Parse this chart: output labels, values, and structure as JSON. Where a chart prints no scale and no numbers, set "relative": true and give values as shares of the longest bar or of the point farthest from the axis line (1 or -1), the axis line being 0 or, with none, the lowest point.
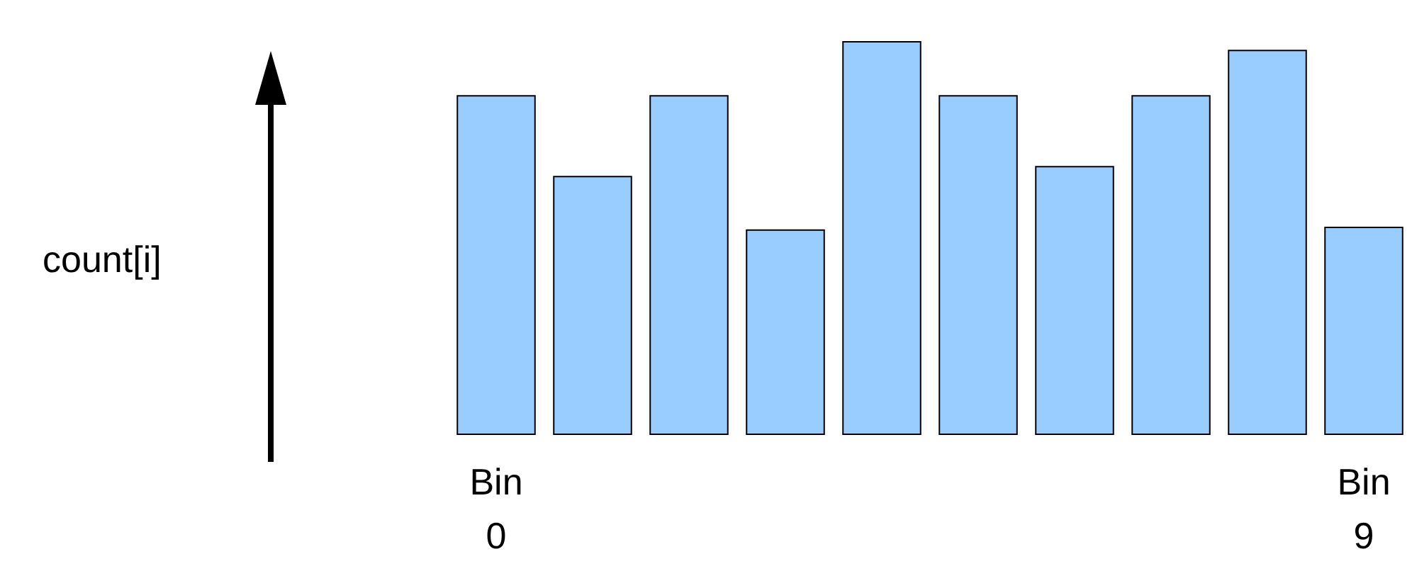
{
  "chart_data": {
    "type": "bar",
    "relative": true,
    "annotations": [
      "count[i]"
    ],
    "categories": [
      "Bin\n0",
      null,
      null,
      null,
      null,
      null,
      null,
      null,
      null,
      "Bin\n9"
    ],
    "values": [
      0.863,
      0.658,
      0.863,
      0.522,
      1,
      0.863,
      0.683,
      0.863,
      0.978,
      0.529
    ],
    "color": "#99ccff"
  }
}
